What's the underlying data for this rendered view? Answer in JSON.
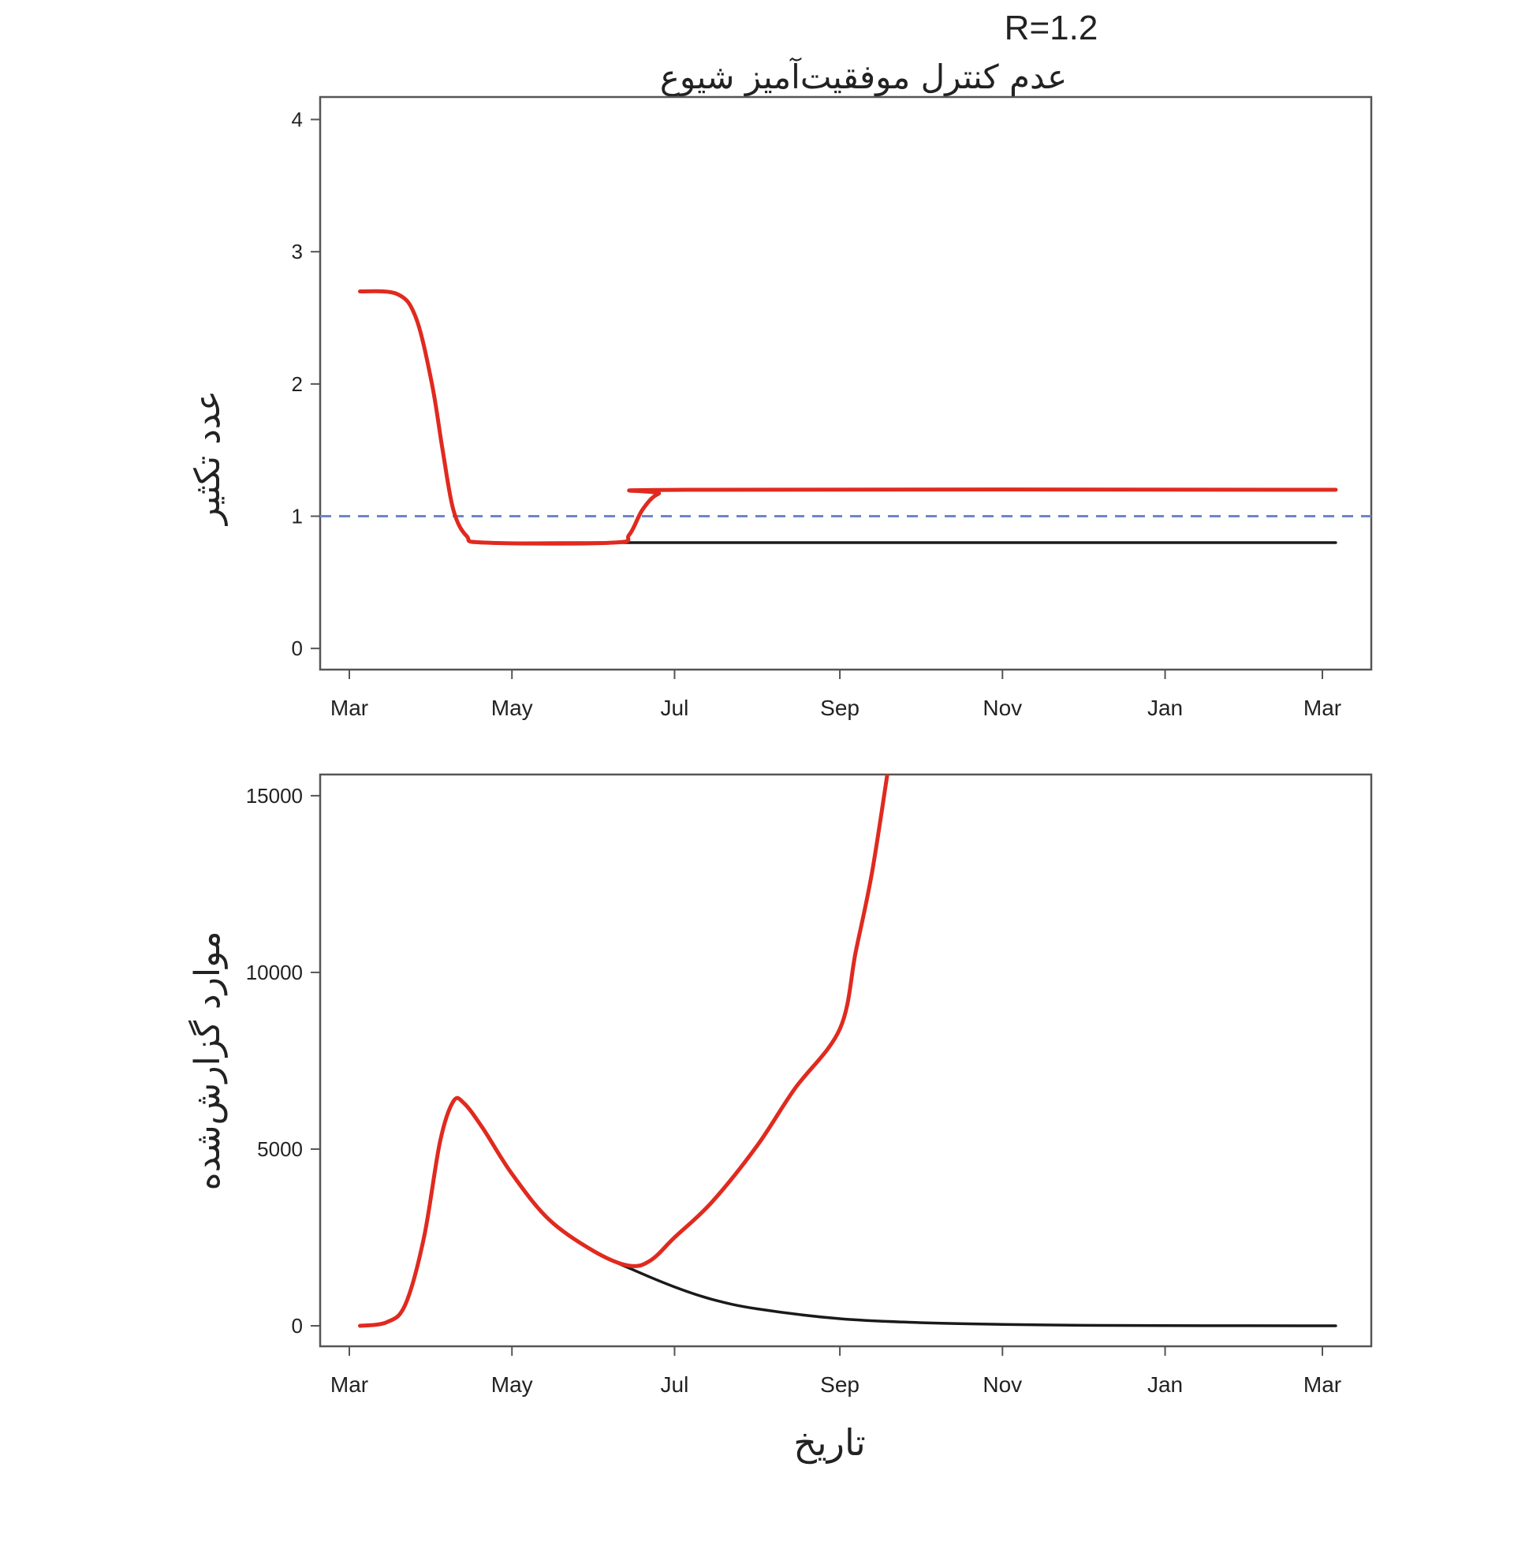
{
  "chart_data": [
    {
      "type": "line",
      "title": "R=1.2",
      "subtitle": "عدم کنترل موفقیت‌آمیز شیوع",
      "xlabel": "",
      "ylabel": "عدد تکثیر",
      "x_ticks": [
        {
          "date": "2020-03-01",
          "label": "Mar"
        },
        {
          "date": "2020-05-01",
          "label": "May"
        },
        {
          "date": "2020-07-01",
          "label": "Jul"
        },
        {
          "date": "2020-09-01",
          "label": "Sep"
        },
        {
          "date": "2020-11-01",
          "label": "Nov"
        },
        {
          "date": "2021-01-01",
          "label": "Jan"
        },
        {
          "date": "2021-03-01",
          "label": "Mar"
        }
      ],
      "y_ticks": [
        "0",
        "1",
        "2",
        "3",
        "4"
      ],
      "ylim": [
        -0.16,
        4.17
      ],
      "reference_line": {
        "y": 1,
        "style": "dashed",
        "color": "#6f86c6"
      },
      "series": [
        {
          "color": "#1a1a1a",
          "points": [
            [
              "2020-03-05",
              2.7
            ],
            [
              "2020-03-19",
              2.68
            ],
            [
              "2020-03-26",
              2.5
            ],
            [
              "2020-04-01",
              2.0
            ],
            [
              "2020-04-05",
              1.5
            ],
            [
              "2020-04-09",
              1.05
            ],
            [
              "2020-04-14",
              0.85
            ],
            [
              "2020-04-21",
              0.8
            ],
            [
              "2020-06-08",
              0.8
            ],
            [
              "2021-03-06",
              0.8
            ]
          ]
        },
        {
          "color": "#e02a1f",
          "points": [
            [
              "2020-03-05",
              2.7
            ],
            [
              "2020-03-19",
              2.68
            ],
            [
              "2020-03-26",
              2.5
            ],
            [
              "2020-04-01",
              2.0
            ],
            [
              "2020-04-05",
              1.5
            ],
            [
              "2020-04-09",
              1.05
            ],
            [
              "2020-04-14",
              0.85
            ],
            [
              "2020-04-21",
              0.8
            ],
            [
              "2020-06-08",
              0.8
            ],
            [
              "2020-06-14",
              0.86
            ],
            [
              "2020-06-19",
              1.05
            ],
            [
              "2020-06-25",
              1.17
            ],
            [
              "2020-07-05",
              1.2
            ],
            [
              "2021-03-06",
              1.2
            ]
          ]
        }
      ]
    },
    {
      "type": "line",
      "xlabel": "تاریخ",
      "ylabel": "موارد گزارش‌شده",
      "x_ticks": [
        {
          "date": "2020-03-01",
          "label": "Mar"
        },
        {
          "date": "2020-05-01",
          "label": "May"
        },
        {
          "date": "2020-07-01",
          "label": "Jul"
        },
        {
          "date": "2020-09-01",
          "label": "Sep"
        },
        {
          "date": "2020-11-01",
          "label": "Nov"
        },
        {
          "date": "2021-01-01",
          "label": "Jan"
        },
        {
          "date": "2021-03-01",
          "label": "Mar"
        }
      ],
      "y_ticks": [
        "0",
        "5000",
        "10000",
        "15000"
      ],
      "ylim": [
        -580,
        15600
      ],
      "series": [
        {
          "color": "#1a1a1a",
          "points": [
            [
              "2020-03-05",
              0
            ],
            [
              "2020-03-15",
              100
            ],
            [
              "2020-03-22",
              600
            ],
            [
              "2020-03-29",
              2500
            ],
            [
              "2020-04-04",
              5200
            ],
            [
              "2020-04-09",
              6350
            ],
            [
              "2020-04-13",
              6300
            ],
            [
              "2020-04-20",
              5600
            ],
            [
              "2020-05-01",
              4300
            ],
            [
              "2020-05-15",
              3000
            ],
            [
              "2020-06-01",
              2100
            ],
            [
              "2020-06-15",
              1600
            ],
            [
              "2020-07-01",
              1100
            ],
            [
              "2020-07-15",
              750
            ],
            [
              "2020-08-01",
              480
            ],
            [
              "2020-09-01",
              200
            ],
            [
              "2020-10-01",
              90
            ],
            [
              "2020-11-01",
              40
            ],
            [
              "2020-12-01",
              15
            ],
            [
              "2021-01-01",
              5
            ],
            [
              "2021-03-06",
              0
            ]
          ]
        },
        {
          "color": "#e02a1f",
          "points": [
            [
              "2020-03-05",
              0
            ],
            [
              "2020-03-15",
              100
            ],
            [
              "2020-03-22",
              600
            ],
            [
              "2020-03-29",
              2500
            ],
            [
              "2020-04-04",
              5200
            ],
            [
              "2020-04-09",
              6350
            ],
            [
              "2020-04-13",
              6300
            ],
            [
              "2020-04-20",
              5600
            ],
            [
              "2020-05-01",
              4300
            ],
            [
              "2020-05-15",
              3000
            ],
            [
              "2020-06-01",
              2100
            ],
            [
              "2020-06-14",
              1700
            ],
            [
              "2020-06-22",
              1850
            ],
            [
              "2020-07-01",
              2500
            ],
            [
              "2020-07-15",
              3500
            ],
            [
              "2020-08-01",
              5100
            ],
            [
              "2020-08-15",
              6700
            ],
            [
              "2020-09-01",
              8400
            ],
            [
              "2020-09-07",
              10600
            ],
            [
              "2020-09-13",
              12800
            ],
            [
              "2020-09-19",
              15700
            ]
          ]
        }
      ]
    }
  ]
}
